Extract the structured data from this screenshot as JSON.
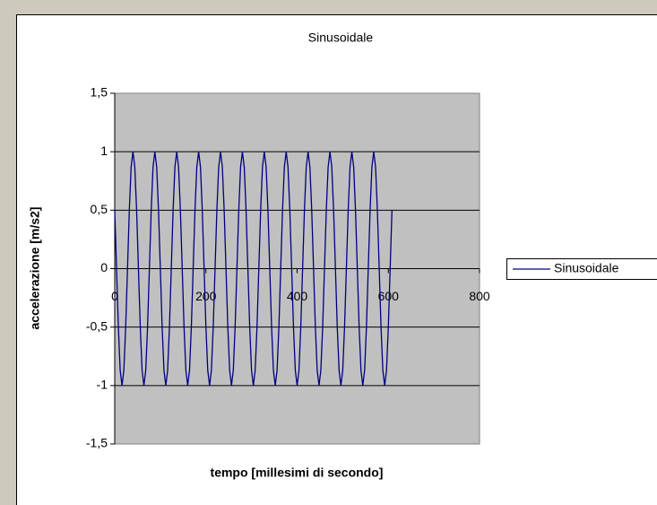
{
  "chart_data": {
    "type": "line",
    "title": "Sinusoidale",
    "x_label": "tempo [millesimi di secondo]",
    "y_label": "accelerazione [m/s2]",
    "xlim": [
      0,
      800
    ],
    "xticks": [
      0,
      200,
      400,
      600,
      800
    ],
    "ylim": [
      -1.5,
      1.5
    ],
    "yticks": [
      {
        "value": -1.5,
        "label": "-1,5"
      },
      -1,
      {
        "value": -0.5,
        "label": "-0,5"
      },
      0,
      {
        "value": 0.5,
        "label": "0,5"
      },
      1,
      {
        "value": 1.5,
        "label": "1,5"
      }
    ],
    "grid": true,
    "legend": "right",
    "x": [
      0,
      4,
      8,
      12,
      16,
      20,
      24,
      28,
      32,
      36,
      40,
      44,
      48,
      52,
      56,
      60,
      64,
      68,
      72,
      76,
      80,
      84,
      88,
      92,
      96,
      100,
      104,
      108,
      112,
      116,
      120,
      124,
      128,
      132,
      136,
      140,
      144,
      148,
      152,
      156,
      160,
      164,
      168,
      172,
      176,
      180,
      184,
      188,
      192,
      196,
      200,
      204,
      208,
      212,
      216,
      220,
      224,
      228,
      232,
      236,
      240,
      244,
      248,
      252,
      256,
      260,
      264,
      268,
      272,
      276,
      280,
      284,
      288,
      292,
      296,
      300,
      304,
      308,
      312,
      316,
      320,
      324,
      328,
      332,
      336,
      340,
      344,
      348,
      352,
      356,
      360,
      364,
      368,
      372,
      376,
      380,
      384,
      388,
      392,
      396,
      400,
      404,
      408,
      412,
      416,
      420,
      424,
      428,
      432,
      436,
      440,
      444,
      448,
      452,
      456,
      460,
      464,
      468,
      472,
      476,
      480,
      484,
      488,
      492,
      496,
      500,
      504,
      508,
      512,
      516,
      520,
      524,
      528,
      532,
      536,
      540,
      544,
      548,
      552,
      556,
      560,
      564,
      568,
      572,
      576,
      580,
      584,
      588,
      592,
      596,
      600,
      604,
      608
    ],
    "series": [
      {
        "name": "Sinusoidale",
        "color": "#000080",
        "values": [
          0.5,
          0,
          -0.5,
          -0.87,
          -1,
          -0.87,
          -0.5,
          0,
          0.5,
          0.87,
          1,
          0.87,
          0.5,
          0,
          -0.5,
          -0.87,
          -1,
          -0.87,
          -0.5,
          0,
          0.5,
          0.87,
          1,
          0.87,
          0.5,
          0,
          -0.5,
          -0.87,
          -1,
          -0.87,
          -0.5,
          0,
          0.5,
          0.87,
          1,
          0.87,
          0.5,
          0,
          -0.5,
          -0.87,
          -1,
          -0.87,
          -0.5,
          0,
          0.5,
          0.87,
          1,
          0.87,
          0.5,
          0,
          -0.5,
          -0.87,
          -1,
          -0.87,
          -0.5,
          0,
          0.5,
          0.87,
          1,
          0.87,
          0.5,
          0,
          -0.5,
          -0.87,
          -1,
          -0.87,
          -0.5,
          0,
          0.5,
          0.87,
          1,
          0.87,
          0.5,
          0,
          -0.5,
          -0.87,
          -1,
          -0.87,
          -0.5,
          0,
          0.5,
          0.87,
          1,
          0.87,
          0.5,
          0,
          -0.5,
          -0.87,
          -1,
          -0.87,
          -0.5,
          0,
          0.5,
          0.87,
          1,
          0.87,
          0.5,
          0,
          -0.5,
          -0.87,
          -1,
          -0.87,
          -0.5,
          0,
          0.5,
          0.87,
          1,
          0.87,
          0.5,
          0,
          -0.5,
          -0.87,
          -1,
          -0.87,
          -0.5,
          0,
          0.5,
          0.87,
          1,
          0.87,
          0.5,
          0,
          -0.5,
          -0.87,
          -1,
          -0.87,
          -0.5,
          0,
          0.5,
          0.87,
          1,
          0.87,
          0.5,
          0,
          -0.5,
          -0.87,
          -1,
          -0.87,
          -0.5,
          0,
          0.5,
          0.87,
          1,
          0.87,
          0.5,
          0,
          -0.5,
          -0.87,
          -1,
          -0.87,
          -0.5,
          0,
          0.5
        ]
      }
    ]
  }
}
